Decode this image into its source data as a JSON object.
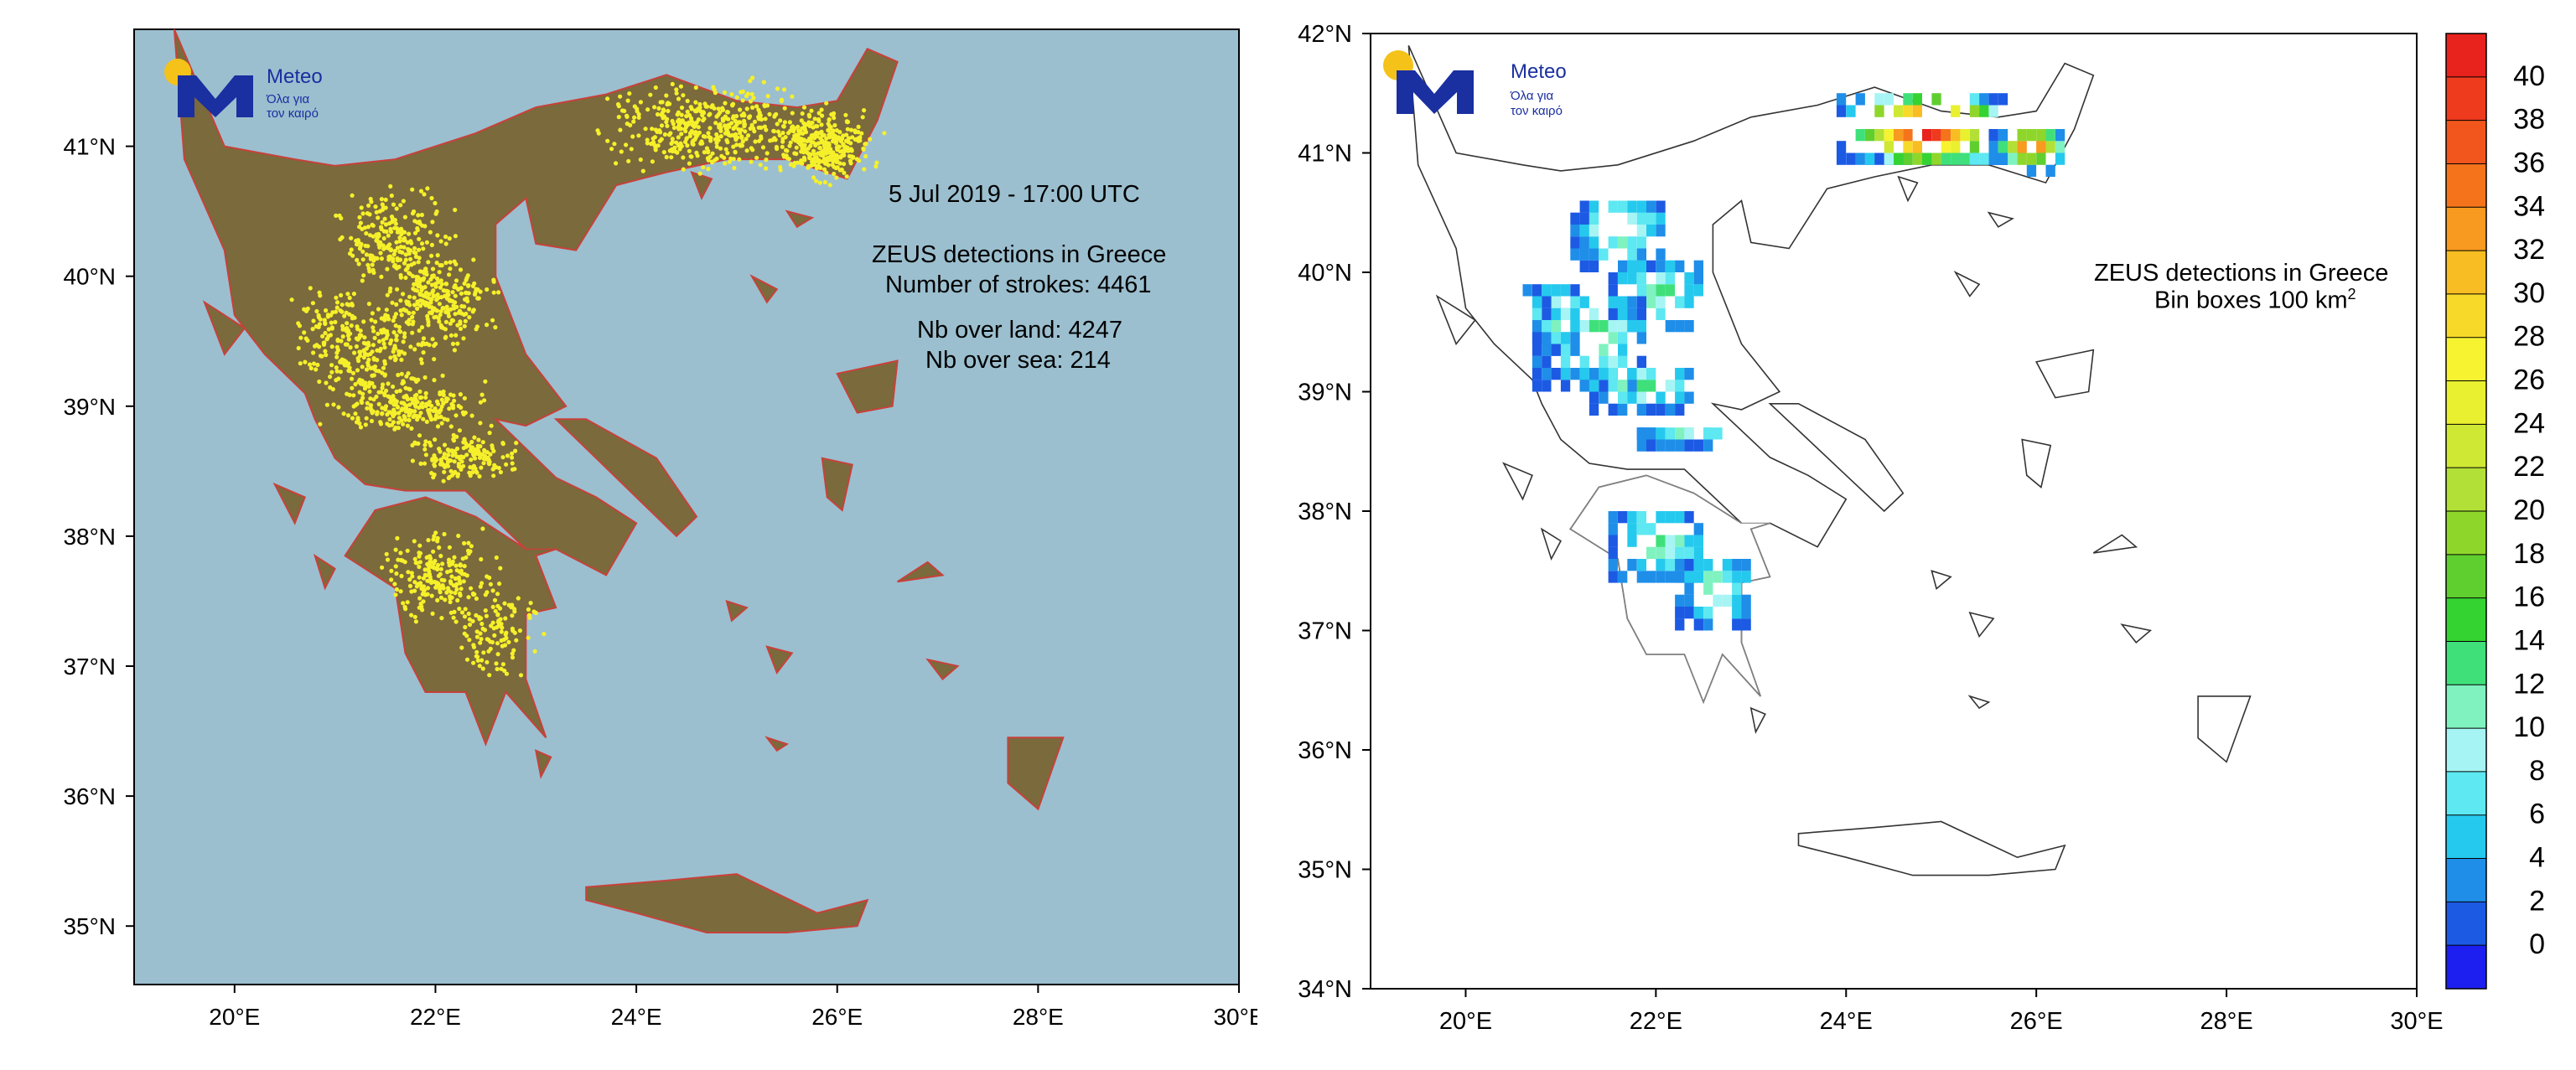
{
  "left_map": {
    "date_label": "5  Jul 2019 - 17:00 UTC",
    "title": "ZEUS detections in Greece",
    "strokes_label": "Number of strokes: 4461",
    "land_label": "Nb over land: 4247",
    "sea_label": "Nb over sea: 214",
    "lat_ticks": [
      "41°N",
      "40°N",
      "39°N",
      "38°N",
      "37°N",
      "36°N",
      "35°N"
    ],
    "lon_ticks": [
      "20°E",
      "22°E",
      "24°E",
      "26°E",
      "28°E",
      "30°E"
    ],
    "colors": {
      "sea": "#9bbfcf",
      "land": "#7a6a3c",
      "border": "#c8413a",
      "stroke": "#f5f02a"
    }
  },
  "right_map": {
    "title": "ZEUS detections in Greece",
    "subtitle": "Bin boxes 100 km",
    "subtitle_sup": "2",
    "lat_ticks": [
      "42°N",
      "41°N",
      "40°N",
      "39°N",
      "38°N",
      "37°N",
      "36°N",
      "35°N",
      "34°N"
    ],
    "lon_ticks": [
      "20°E",
      "22°E",
      "24°E",
      "26°E",
      "28°E",
      "30°E"
    ]
  },
  "logo": {
    "name": "Meteo",
    "tagline_1": "Όλα για",
    "tagline_2": "τον καιρό",
    "colors": {
      "letter": "#1a2fa0",
      "sun": "#f5c21a"
    }
  },
  "colorbar": {
    "labels": [
      "40",
      "38",
      "36",
      "34",
      "32",
      "30",
      "28",
      "26",
      "24",
      "22",
      "20",
      "18",
      "16",
      "14",
      "12",
      "10",
      "8",
      "6",
      "4",
      "2",
      "0"
    ],
    "colors": [
      "#e8221c",
      "#ee3a1d",
      "#f2561c",
      "#f5741b",
      "#f79a1f",
      "#f8bd22",
      "#f7d92a",
      "#f7f331",
      "#e9f02f",
      "#cfe834",
      "#b3e036",
      "#8fd62b",
      "#5fcf2f",
      "#35d332",
      "#3fe07a",
      "#7ff2c0",
      "#a6f5f4",
      "#5de8f2",
      "#25c9ee",
      "#1e8ee9",
      "#1c5ae4",
      "#1d1ff0"
    ],
    "levels": [
      40,
      38,
      36,
      34,
      32,
      30,
      28,
      26,
      24,
      22,
      20,
      18,
      16,
      14,
      12,
      10,
      8,
      6,
      4,
      2,
      0
    ]
  }
}
